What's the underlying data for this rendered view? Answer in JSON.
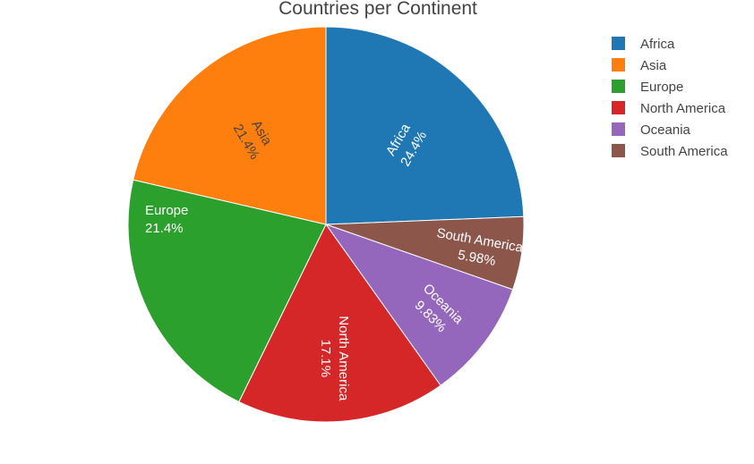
{
  "chart_data": {
    "type": "pie",
    "title": "Countries per Continent",
    "labels": [
      "Africa",
      "Asia",
      "Europe",
      "North America",
      "Oceania",
      "South America"
    ],
    "percent_labels": [
      "24.4%",
      "21.4%",
      "21.4%",
      "17.1%",
      "9.83%",
      "5.98%"
    ],
    "values": [
      24.4,
      21.4,
      21.4,
      17.1,
      9.83,
      5.98
    ],
    "slice_order": [
      "Africa",
      "South America",
      "Oceania",
      "North America",
      "Europe",
      "Asia"
    ],
    "direction": "clockwise",
    "start": "top",
    "colors": {
      "Africa": "#1f77b4",
      "Asia": "#ff7f0e",
      "Europe": "#2ca02c",
      "North America": "#d62728",
      "Oceania": "#9467bd",
      "South America": "#8c564b"
    },
    "label_text_colors": {
      "Africa": "#ffffff",
      "Asia": "#444444",
      "Europe": "#ffffff",
      "North America": "#ffffff",
      "Oceania": "#ffffff",
      "South America": "#ffffff"
    },
    "legend_position": "top-right"
  }
}
